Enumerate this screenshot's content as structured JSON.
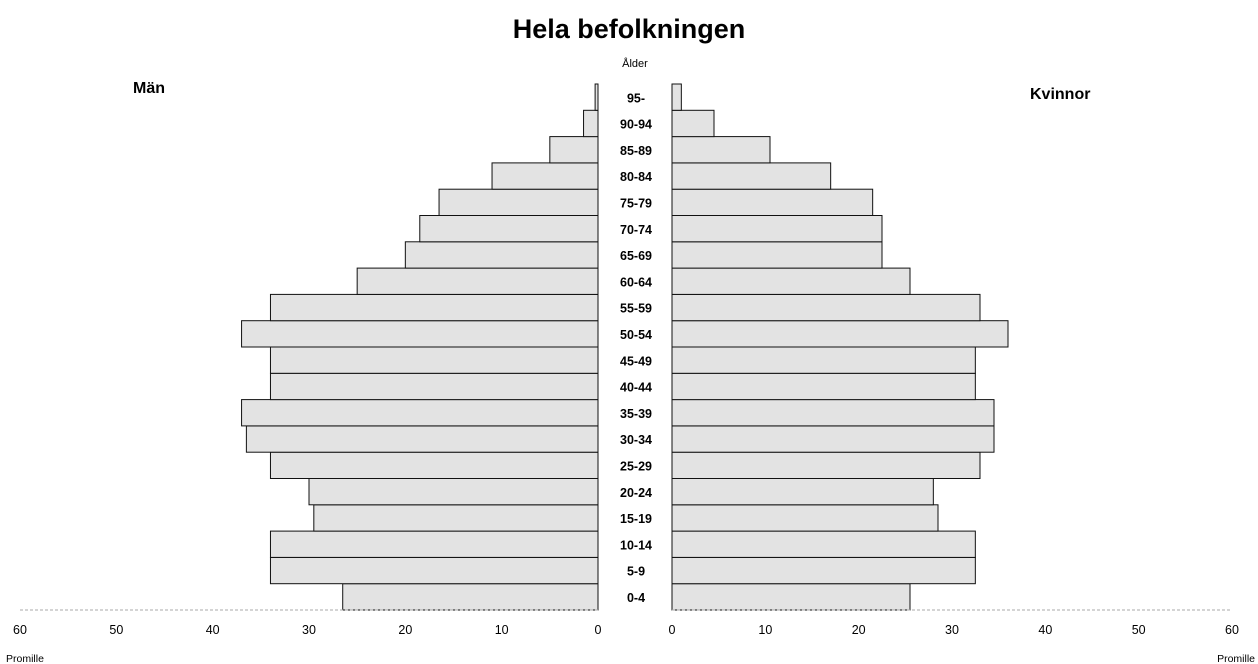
{
  "chart_data": {
    "type": "bar",
    "title": "Hela befolkningen",
    "axis_title": "Ålder",
    "left_label": "Män",
    "right_label": "Kvinnor",
    "unit_label": "Promille",
    "categories": [
      "0-4",
      "5-9",
      "10-14",
      "15-19",
      "20-24",
      "25-29",
      "30-34",
      "35-39",
      "40-44",
      "45-49",
      "50-54",
      "55-59",
      "60-64",
      "65-69",
      "70-74",
      "75-79",
      "80-84",
      "85-89",
      "90-94",
      "95-"
    ],
    "series": [
      {
        "name": "Män",
        "values": [
          26.5,
          34.0,
          34.0,
          29.5,
          30.0,
          34.0,
          36.5,
          37.0,
          34.0,
          34.0,
          37.0,
          34.0,
          25.0,
          20.0,
          18.5,
          16.5,
          11.0,
          5.0,
          1.5,
          0.3
        ]
      },
      {
        "name": "Kvinnor",
        "values": [
          25.5,
          32.5,
          32.5,
          28.5,
          28.0,
          33.0,
          34.5,
          34.5,
          32.5,
          32.5,
          36.0,
          33.0,
          25.5,
          22.5,
          22.5,
          21.5,
          17.0,
          10.5,
          4.5,
          1.0
        ]
      }
    ],
    "xlim": [
      0,
      60
    ],
    "ticks": [
      "0",
      "10",
      "20",
      "30",
      "40",
      "50",
      "60"
    ]
  }
}
